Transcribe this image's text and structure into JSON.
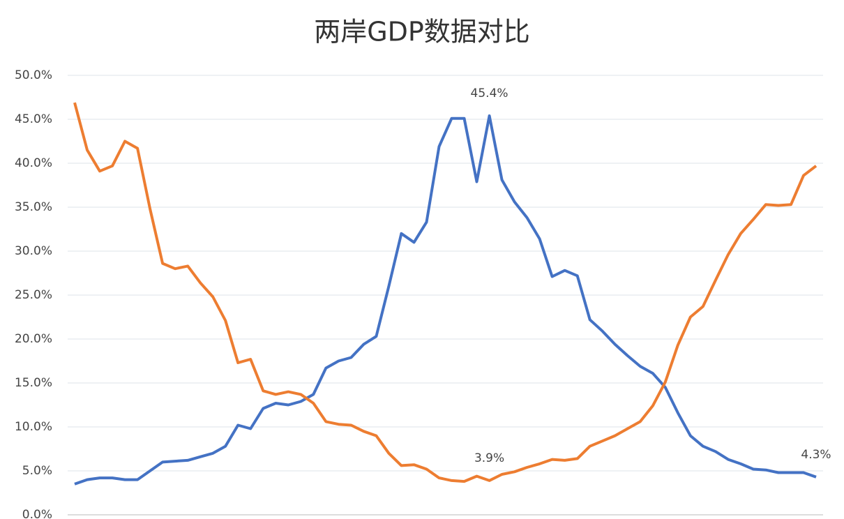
{
  "chart_data": {
    "type": "line",
    "title": "两岸GDP数据对比",
    "categories": [
      null,
      null,
      null,
      null,
      null,
      null,
      null,
      null,
      null,
      null,
      null,
      null,
      null,
      null,
      null,
      null,
      null,
      null,
      null,
      null,
      null,
      null,
      null,
      null,
      null,
      null,
      null,
      null,
      null,
      null,
      null,
      null,
      null,
      null,
      null,
      null,
      null,
      null,
      null,
      null,
      null,
      null,
      null,
      null,
      null,
      null,
      null,
      null,
      null,
      null,
      null,
      null,
      null,
      null,
      null,
      null,
      null,
      null,
      null,
      null
    ],
    "series": [
      {
        "color": "#4472c4",
        "values": [
          3.5,
          4.0,
          4.2,
          4.2,
          4.0,
          4.0,
          5.0,
          6.0,
          6.1,
          6.2,
          6.6,
          7.0,
          7.8,
          10.2,
          9.8,
          12.1,
          12.7,
          12.5,
          12.9,
          13.7,
          16.7,
          17.5,
          17.9,
          19.4,
          20.3,
          26.0,
          32.0,
          31.0,
          33.3,
          41.9,
          45.1,
          45.1,
          37.9,
          45.4,
          38.1,
          35.6,
          33.8,
          31.4,
          27.1,
          27.8,
          27.2,
          22.2,
          20.9,
          19.4,
          18.1,
          16.9,
          16.1,
          14.5,
          11.6,
          9.0,
          7.8,
          7.2,
          6.3,
          5.8,
          5.2,
          5.1,
          4.8,
          4.8,
          4.8,
          4.3
        ],
        "value_labels": [
          null,
          null,
          null,
          null,
          null,
          null,
          null,
          null,
          null,
          null,
          null,
          null,
          null,
          null,
          null,
          null,
          null,
          null,
          null,
          null,
          null,
          null,
          null,
          null,
          null,
          null,
          null,
          null,
          null,
          null,
          null,
          null,
          null,
          "45.4%",
          null,
          null,
          null,
          null,
          null,
          null,
          null,
          null,
          null,
          null,
          null,
          null,
          null,
          null,
          null,
          null,
          null,
          null,
          null,
          null,
          null,
          null,
          null,
          null,
          null,
          "4.3%"
        ]
      },
      {
        "color": "#ed7d31",
        "values": [
          46.9,
          41.5,
          39.1,
          39.7,
          42.5,
          41.7,
          34.8,
          28.6,
          28.0,
          28.3,
          26.4,
          24.8,
          22.1,
          17.3,
          17.7,
          14.1,
          13.7,
          14.0,
          13.7,
          12.7,
          10.6,
          10.3,
          10.2,
          9.5,
          9.0,
          7.0,
          5.6,
          5.7,
          5.2,
          4.2,
          3.9,
          3.8,
          4.4,
          3.9,
          4.6,
          4.9,
          5.4,
          5.8,
          6.3,
          6.2,
          6.4,
          7.8,
          8.4,
          9.0,
          9.8,
          10.6,
          12.4,
          15.1,
          19.3,
          22.5,
          23.7,
          26.7,
          29.6,
          32.0,
          33.6,
          35.3,
          35.2,
          35.3,
          38.6,
          39.7
        ],
        "value_labels": [
          null,
          null,
          null,
          null,
          null,
          null,
          null,
          null,
          null,
          null,
          null,
          null,
          null,
          null,
          null,
          null,
          null,
          null,
          null,
          null,
          null,
          null,
          null,
          null,
          null,
          null,
          null,
          null,
          null,
          null,
          null,
          null,
          null,
          "3.9%",
          null,
          null,
          null,
          null,
          null,
          null,
          null,
          null,
          null,
          null,
          null,
          null,
          null,
          null,
          null,
          null,
          null,
          null,
          null,
          null,
          null,
          null,
          null,
          null,
          null,
          null
        ]
      }
    ],
    "ylim": [
      0,
      50
    ],
    "yticks": [
      {
        "value": 0,
        "label": "0.0%"
      },
      {
        "value": 5,
        "label": "5.0%"
      },
      {
        "value": 10,
        "label": "10.0%"
      },
      {
        "value": 15,
        "label": "15.0%"
      },
      {
        "value": 20,
        "label": "20.0%"
      },
      {
        "value": 25,
        "label": "25.0%"
      },
      {
        "value": 30,
        "label": "30.0%"
      },
      {
        "value": 35,
        "label": "35.0%"
      },
      {
        "value": 40,
        "label": "40.0%"
      },
      {
        "value": 45,
        "label": "45.0%"
      },
      {
        "value": 50,
        "label": "50.0%"
      }
    ],
    "grid": true
  }
}
